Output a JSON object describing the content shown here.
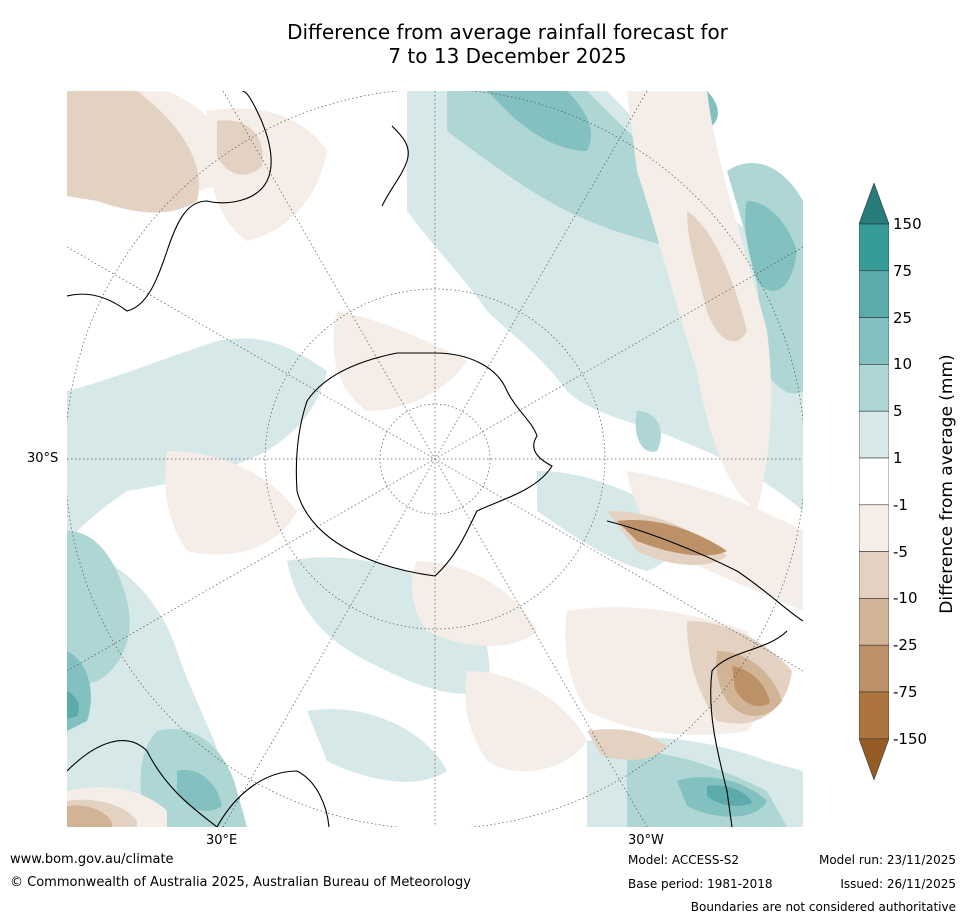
{
  "title": {
    "line1": "Difference from average rainfall forecast for",
    "line2": "7 to 13 December 2025"
  },
  "map": {
    "projection": "south-polar-stereographic",
    "graticule_labels": {
      "lat_left": "30°S",
      "lon_bottom_left": "30°E",
      "lon_bottom_right": "30°W"
    },
    "regions_visible": [
      "Australia",
      "New Zealand",
      "Antarctica",
      "South America",
      "Southern Africa"
    ]
  },
  "colorbar": {
    "title": "Difference from average (mm)",
    "tick_labels": [
      "150",
      "75",
      "25",
      "10",
      "5",
      "1",
      "-1",
      "-5",
      "-10",
      "-25",
      "-75",
      "-150"
    ],
    "bins": [
      {
        "range": ">150",
        "color": "#267c7a"
      },
      {
        "range": "75 to 150",
        "color": "#379b98"
      },
      {
        "range": "25 to 75",
        "color": "#5aabaa"
      },
      {
        "range": "10 to 25",
        "color": "#82c1bf"
      },
      {
        "range": "5 to 10",
        "color": "#add6d5"
      },
      {
        "range": "1 to 5",
        "color": "#d6e9e8"
      },
      {
        "range": "-1 to 1",
        "color": "#ffffff"
      },
      {
        "range": "-5 to -1",
        "color": "#f4ede8"
      },
      {
        "range": "-10 to -5",
        "color": "#e3d2c2"
      },
      {
        "range": "-25 to -10",
        "color": "#d1b395"
      },
      {
        "range": "-75 to -25",
        "color": "#bd9167"
      },
      {
        "range": "-150 to -75",
        "color": "#ad743e"
      },
      {
        "range": "<-150",
        "color": "#955c25"
      }
    ]
  },
  "footer": {
    "website": "www.bom.gov.au/climate",
    "copyright": "© Commonwealth of Australia 2025, Australian Bureau of Meteorology",
    "model": "Model: ACCESS-S2",
    "base_period": "Base period: 1981-2018",
    "model_run": "Model run: 23/11/2025",
    "issued": "Issued: 26/11/2025",
    "disclaimer": "Boundaries are not considered authoritative"
  }
}
